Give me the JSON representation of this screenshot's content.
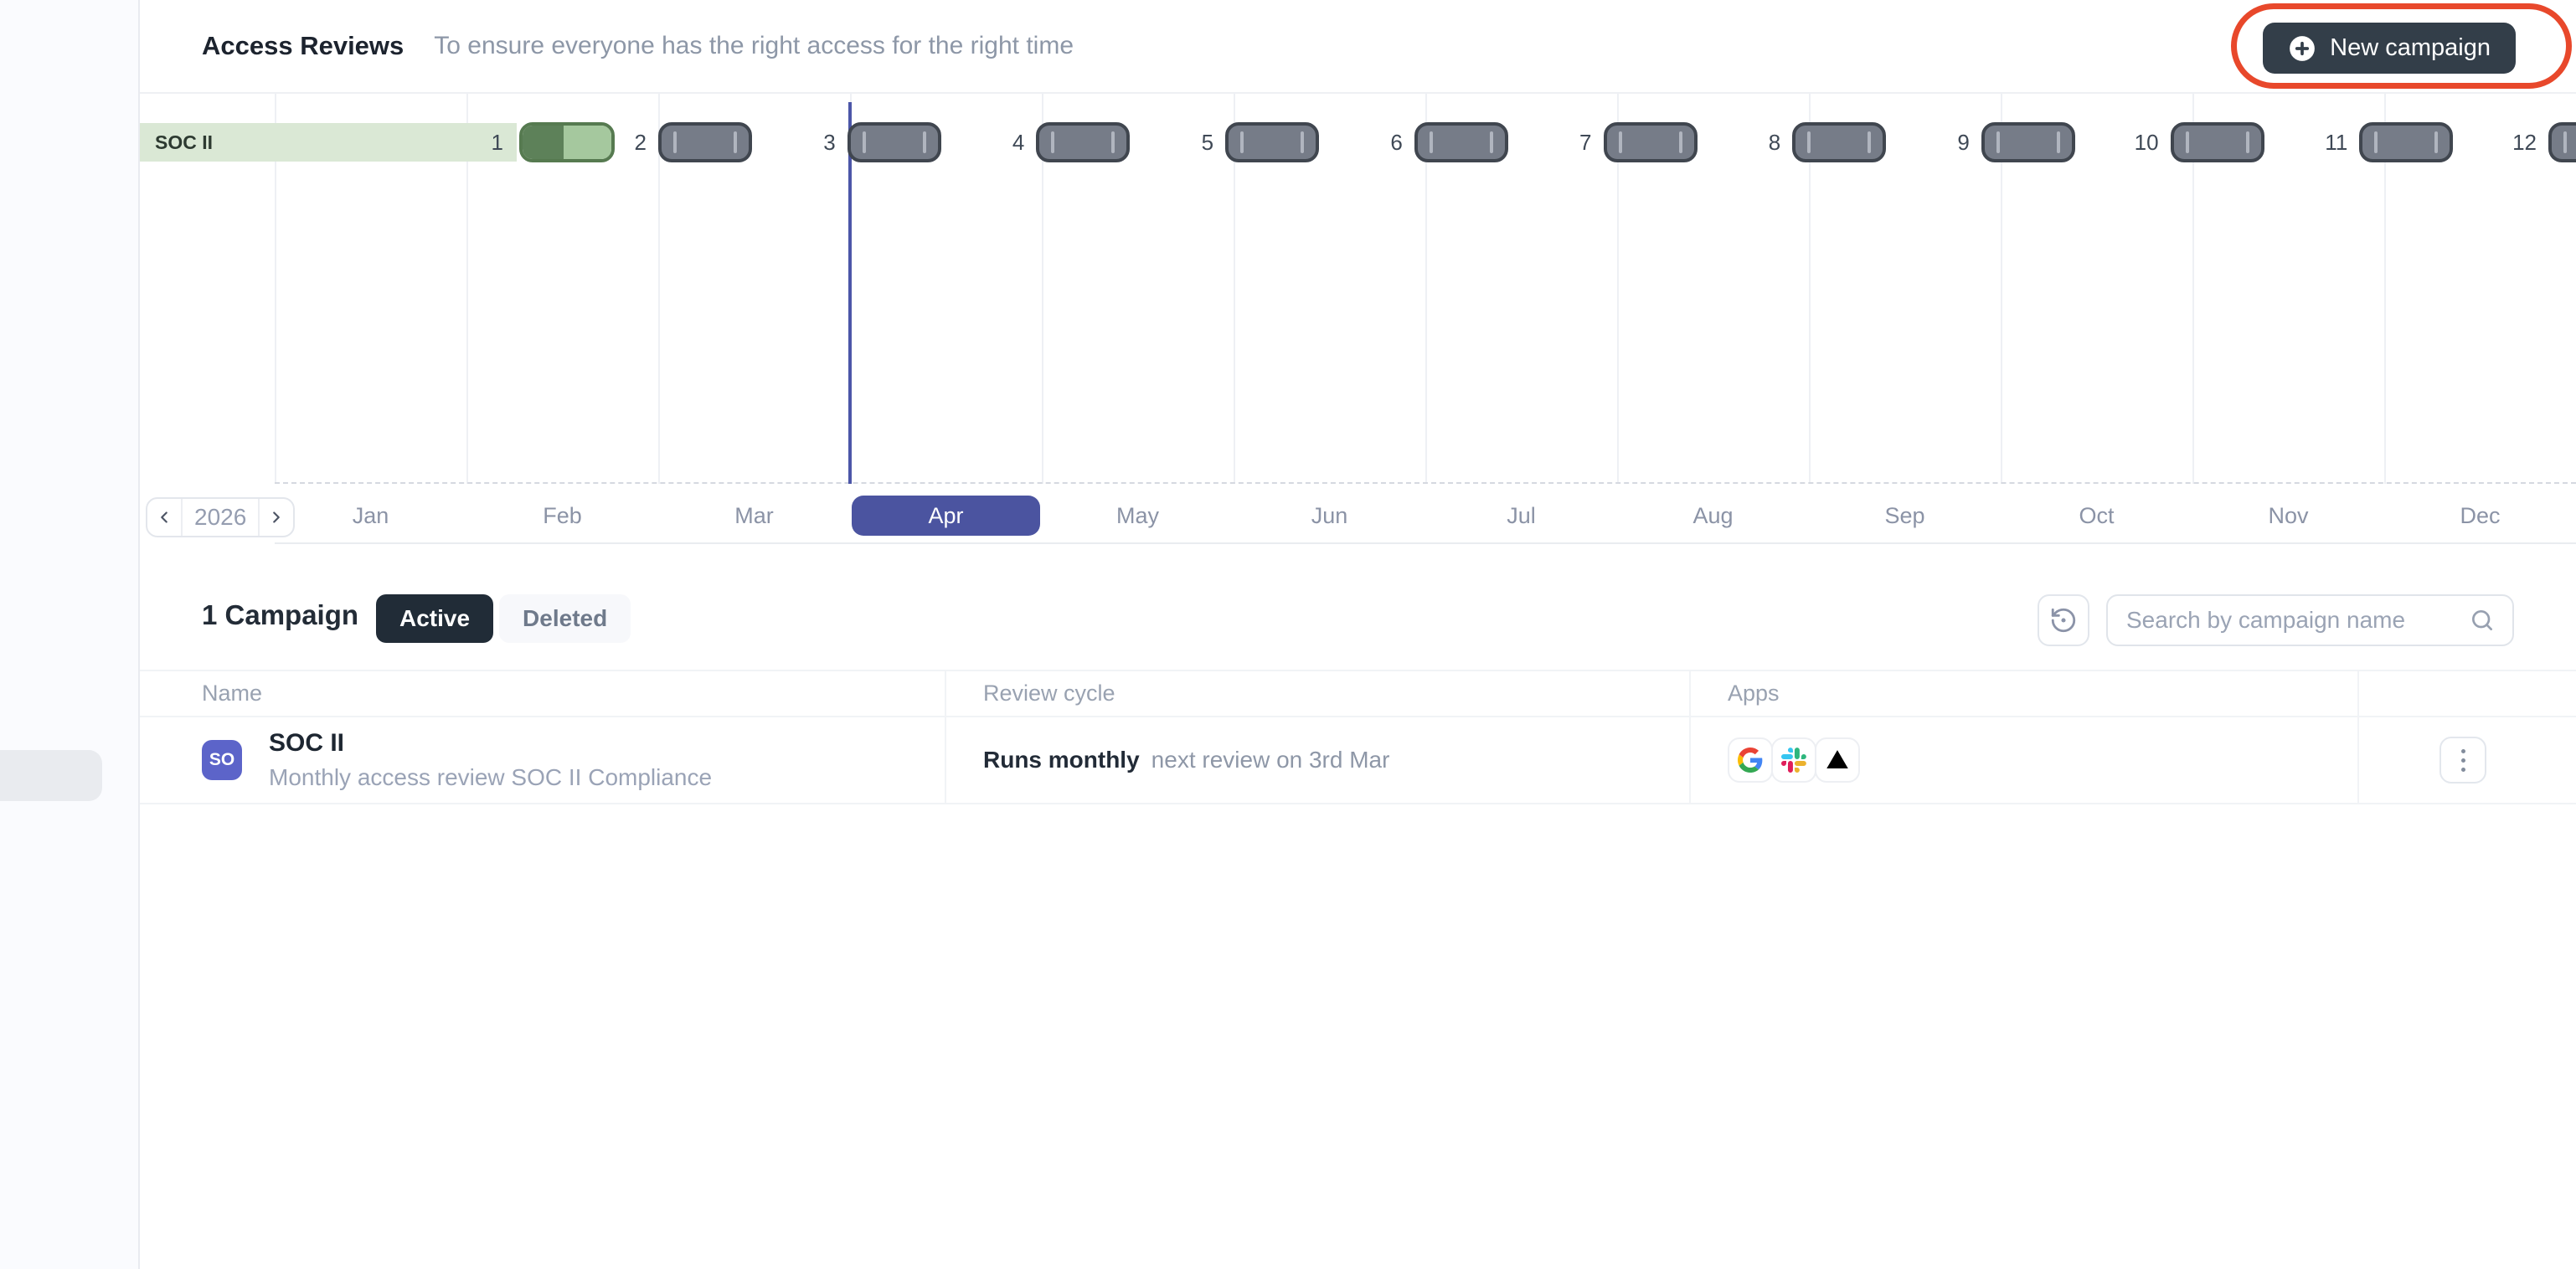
{
  "header": {
    "title": "Access Reviews",
    "subtitle": "To ensure everyone has the right access for the right time",
    "new_campaign_label": "New campaign"
  },
  "timeline": {
    "campaign_label": "SOC II",
    "year": "2026",
    "months": [
      "Jan",
      "Feb",
      "Mar",
      "Apr",
      "May",
      "Jun",
      "Jul",
      "Aug",
      "Sep",
      "Oct",
      "Nov",
      "Dec"
    ],
    "active_month": "Apr",
    "milestones": [
      {
        "number": 1,
        "status": "done"
      },
      {
        "number": 2,
        "status": "scheduled"
      },
      {
        "number": 3,
        "status": "scheduled"
      },
      {
        "number": 4,
        "status": "scheduled"
      },
      {
        "number": 5,
        "status": "scheduled"
      },
      {
        "number": 6,
        "status": "scheduled"
      },
      {
        "number": 7,
        "status": "scheduled"
      },
      {
        "number": 8,
        "status": "scheduled"
      },
      {
        "number": 9,
        "status": "scheduled"
      },
      {
        "number": 10,
        "status": "scheduled"
      },
      {
        "number": 11,
        "status": "scheduled"
      },
      {
        "number": 12,
        "status": "scheduled"
      }
    ]
  },
  "campaigns": {
    "count_label": "1 Campaign",
    "tabs": [
      {
        "label": "Active",
        "active": true
      },
      {
        "label": "Deleted",
        "active": false
      }
    ],
    "search_placeholder": "Search by campaign name",
    "table": {
      "columns": [
        "Name",
        "Review cycle",
        "Apps"
      ],
      "rows": [
        {
          "avatar_initials": "SO",
          "name": "SOC II",
          "description": "Monthly access review SOC II Compliance",
          "cycle": "Runs monthly",
          "cycle_note": "next review on 3rd Mar",
          "apps": [
            "Google",
            "Slack",
            "Vercel"
          ]
        }
      ]
    }
  },
  "colors": {
    "annotation_red": "#e8482b",
    "primary_dark": "#333e49",
    "tab_active_dark": "#212c37",
    "month_active_indigo": "#4b54a0",
    "today_line_indigo": "#4c56a8",
    "avatar_indigo": "#5c64c9",
    "review_done_dark_green": "#5d8159",
    "review_done_light_green": "#a5c89e",
    "campaign_bar_green": "#dae8d5",
    "review_pending_gray": "#767c88"
  }
}
